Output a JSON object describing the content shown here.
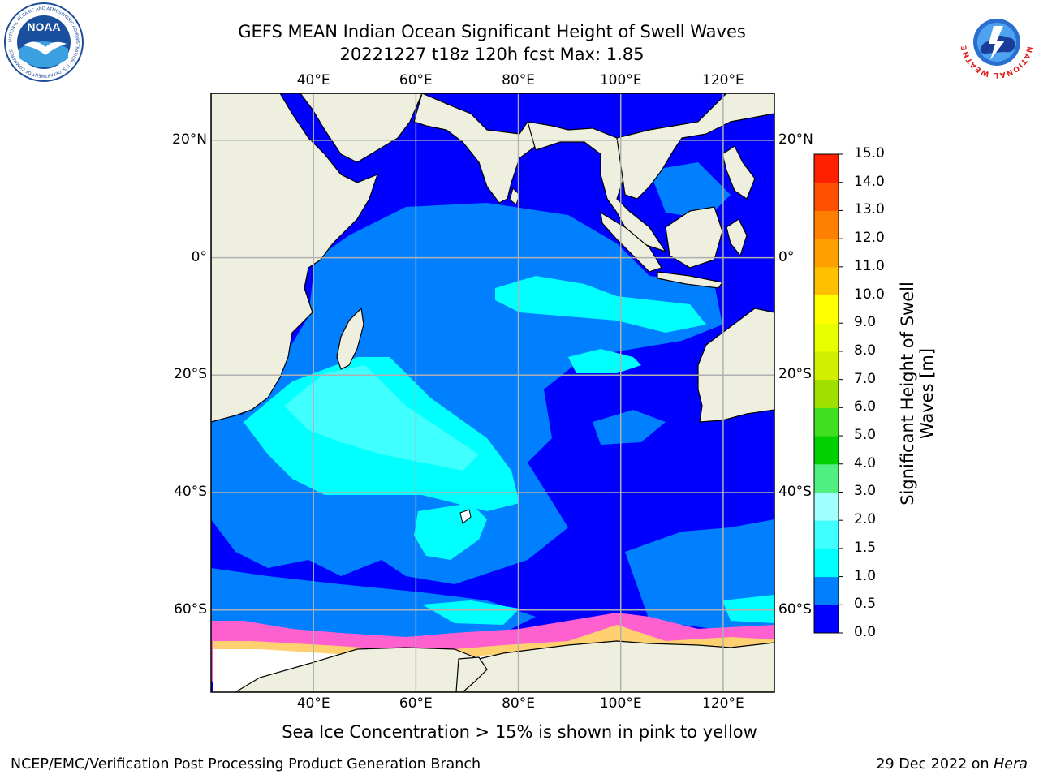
{
  "title": {
    "line1": "GEFS MEAN Indian Ocean Significant Height of Swell Waves",
    "line2": "20221227 t18z 120h fcst   Max: 1.85"
  },
  "map": {
    "lon_labels": [
      "40°E",
      "60°E",
      "80°E",
      "100°E",
      "120°E"
    ],
    "lat_labels": [
      "20°N",
      "0°",
      "20°S",
      "40°S",
      "60°S"
    ],
    "lon_values": [
      40,
      60,
      80,
      100,
      120
    ],
    "lat_values": [
      20,
      0,
      -20,
      -40,
      -60
    ],
    "extent": {
      "lon_min": 20,
      "lon_max": 130,
      "lat_min": -74,
      "lat_max": 28
    },
    "grid": true,
    "colors": {
      "land": "#efefdf",
      "ice": "#ffffff",
      "sea_ice_edge": "#ff66cc"
    }
  },
  "colorbar": {
    "label_line1": "Significant Height of Swell",
    "label_line2": "Waves [m]",
    "ticks": [
      "0.0",
      "0.5",
      "1.0",
      "1.5",
      "2.0",
      "3.0",
      "4.0",
      "5.0",
      "6.0",
      "7.0",
      "8.0",
      "9.0",
      "10.0",
      "11.0",
      "12.0",
      "13.0",
      "14.0",
      "15.0"
    ],
    "colors": [
      "#0000ff",
      "#0080ff",
      "#00ffff",
      "#40ffff",
      "#a0ffff",
      "#50f080",
      "#00d000",
      "#40e020",
      "#a0e000",
      "#d0f000",
      "#e8ff00",
      "#ffff00",
      "#ffc000",
      "#ffa000",
      "#ff8000",
      "#ff5000",
      "#ff2000",
      "#ff0000"
    ]
  },
  "legend_note": "Sea Ice Concentration > 15% is shown in pink to yellow",
  "footer": {
    "left": "NCEP/EMC/Verification Post Processing Product Generation Branch",
    "right_prefix": "29 Dec 2022 on ",
    "right_host": "Hera"
  },
  "logos": {
    "noaa": {
      "text": "NOAA",
      "ring": "NATIONAL OCEANIC AND ATMOSPHERIC ADMINISTRATION · U.S. DEPARTMENT OF COMMERCE"
    },
    "nws": {
      "ring": "NATIONAL WEATHER SERVICE"
    }
  }
}
